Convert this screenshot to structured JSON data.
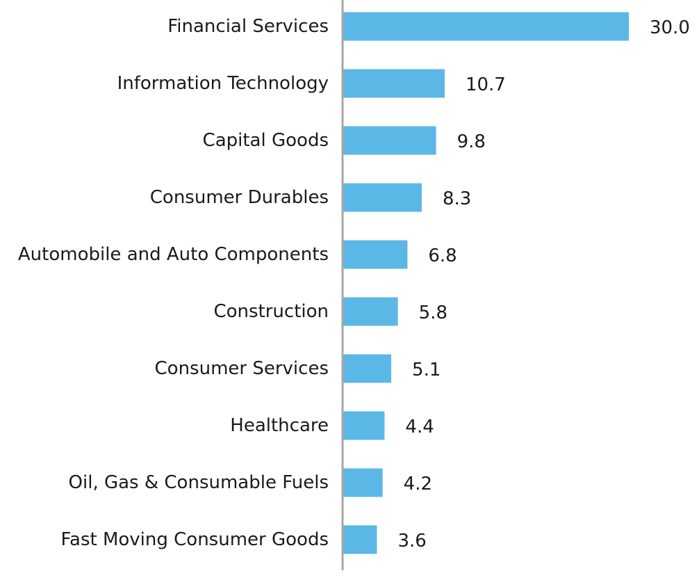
{
  "chart_data": {
    "type": "bar",
    "orientation": "horizontal",
    "categories": [
      "Financial Services",
      "Information Technology",
      "Capital Goods",
      "Consumer Durables",
      "Automobile and Auto Components",
      "Construction",
      "Consumer Services",
      "Healthcare",
      "Oil, Gas & Consumable Fuels",
      "Fast Moving Consumer Goods"
    ],
    "values": [
      30.0,
      10.7,
      9.8,
      8.3,
      6.8,
      5.8,
      5.1,
      4.4,
      4.2,
      3.6
    ],
    "value_labels": [
      "30.0",
      "10.7",
      "9.8",
      "8.3",
      "6.8",
      "5.8",
      "5.1",
      "4.4",
      "4.2",
      "3.6"
    ],
    "xlim": [
      0,
      30
    ],
    "grid": false,
    "legend": "none",
    "colors": {
      "bar": "#5BB7E6",
      "axis": "#A6A6A6",
      "text": "#1a1a1a"
    }
  }
}
